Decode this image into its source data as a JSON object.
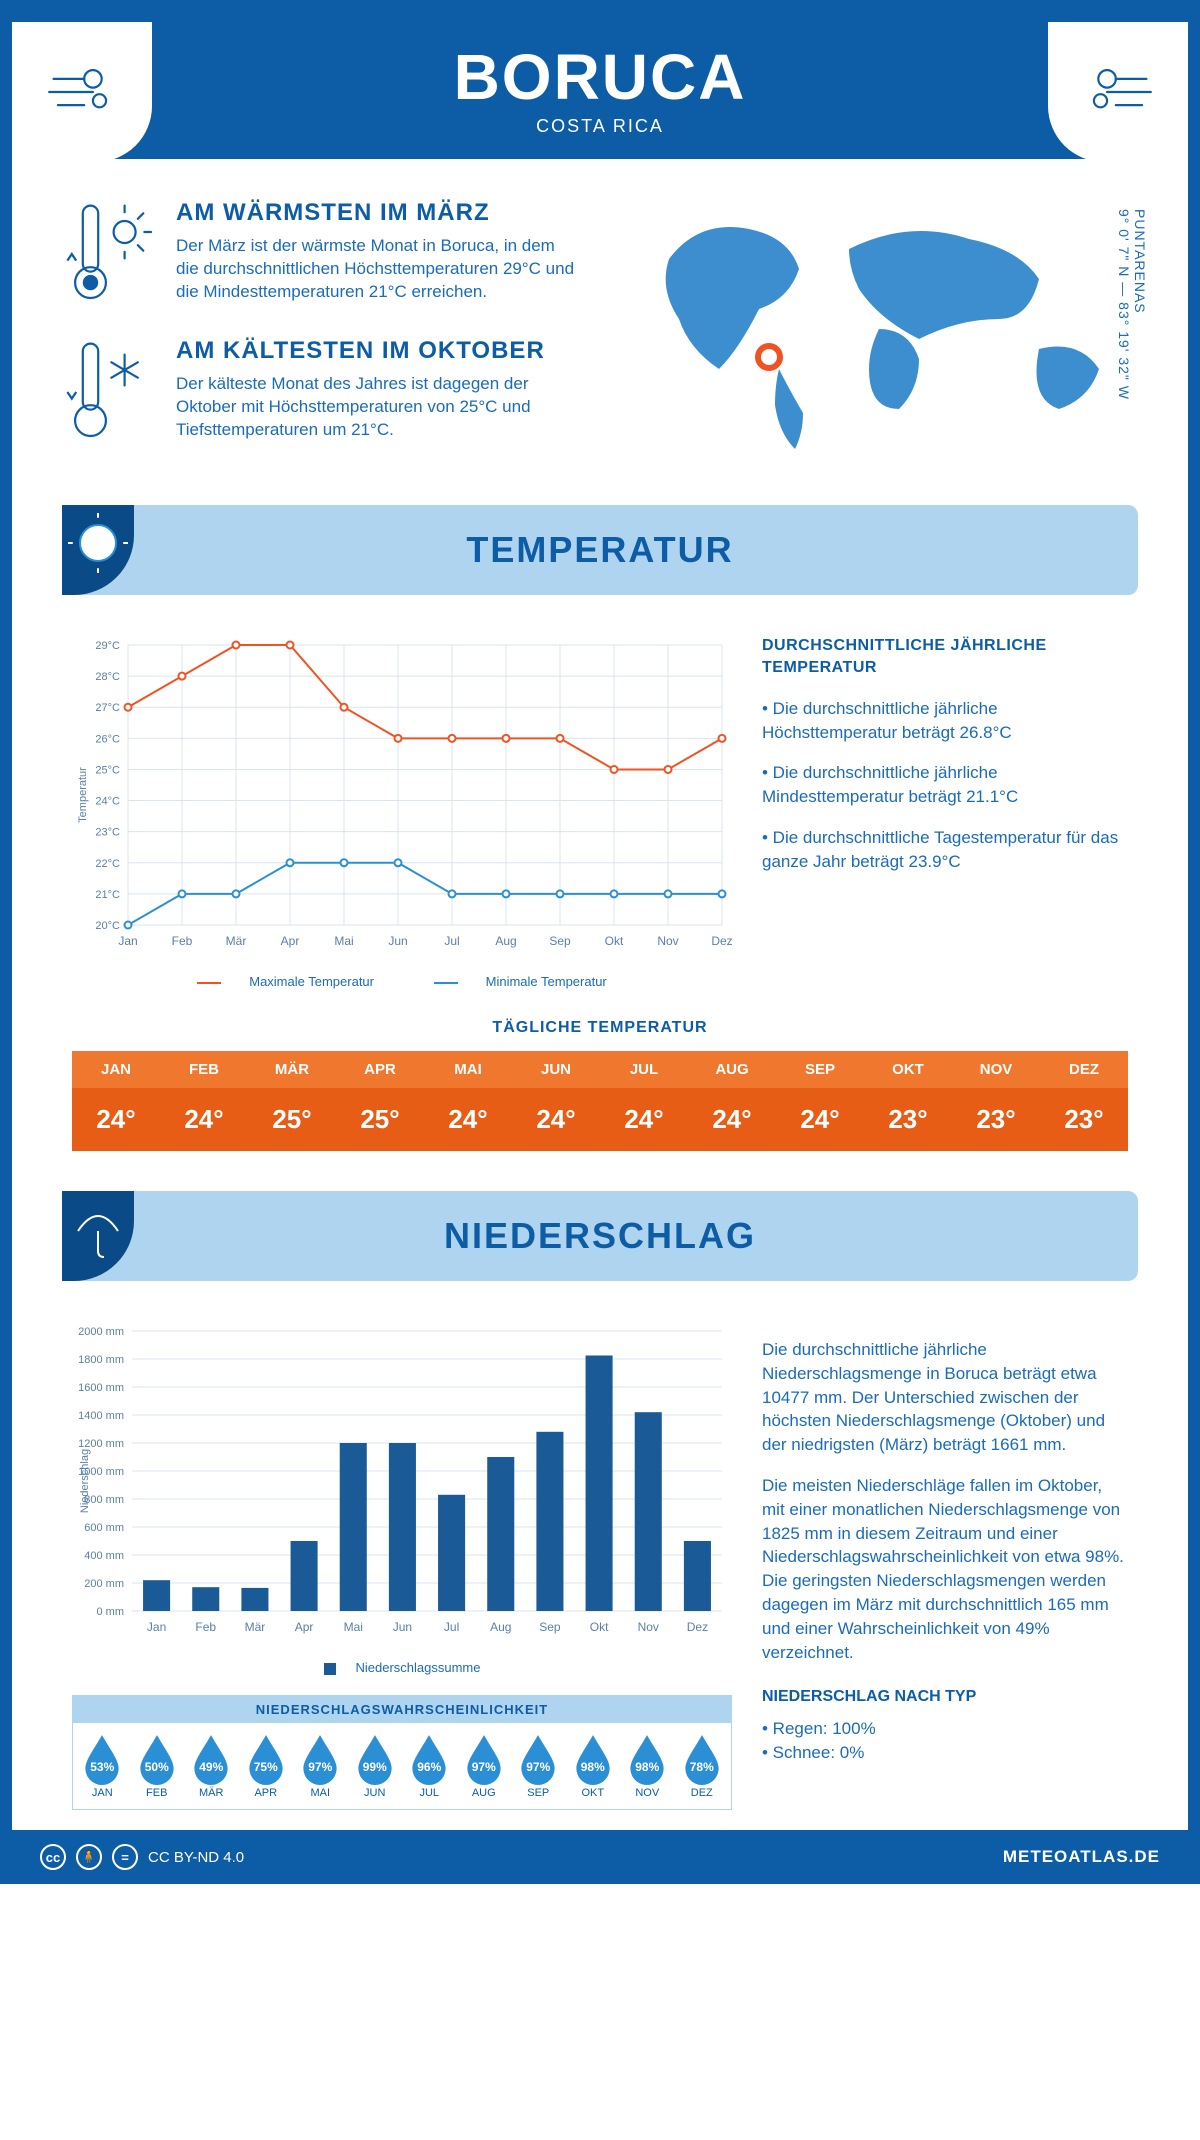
{
  "header": {
    "title": "BORUCA",
    "subtitle": "COSTA RICA"
  },
  "intro": {
    "warm": {
      "heading": "AM WÄRMSTEN IM MÄRZ",
      "text": "Der März ist der wärmste Monat in Boruca, in dem die durchschnittlichen Höchsttemperaturen 29°C und die Mindesttemperaturen 21°C erreichen."
    },
    "cold": {
      "heading": "AM KÄLTESTEN IM OKTOBER",
      "text": "Der kälteste Monat des Jahres ist dagegen der Oktober mit Höchsttemperaturen von 25°C und Tiefsttemperaturen um 21°C."
    },
    "coords": "9° 0' 7\" N — 83° 19' 32\" W",
    "region": "PUNTARENAS"
  },
  "sections": {
    "temperature": "TEMPERATUR",
    "precipitation": "NIEDERSCHLAG"
  },
  "months_short": [
    "Jan",
    "Feb",
    "Mär",
    "Apr",
    "Mai",
    "Jun",
    "Jul",
    "Aug",
    "Sep",
    "Okt",
    "Nov",
    "Dez"
  ],
  "months_upper": [
    "JAN",
    "FEB",
    "MÄR",
    "APR",
    "MAI",
    "JUN",
    "JUL",
    "AUG",
    "SEP",
    "OKT",
    "NOV",
    "DEZ"
  ],
  "temp_chart": {
    "type": "line",
    "ylabel": "Temperatur",
    "ylim": [
      20,
      29
    ],
    "ytick_step": 1,
    "grid_color": "#d8e4f0",
    "max_color": "#f05323",
    "min_color": "#2b8fd6",
    "max_series": [
      27,
      28,
      29,
      29,
      27,
      26,
      26,
      26,
      26,
      25,
      25,
      26
    ],
    "min_series": [
      20,
      21,
      21,
      22,
      22,
      22,
      21,
      21,
      21,
      21,
      21,
      21
    ],
    "max_label": "Maximale Temperatur",
    "min_label": "Minimale Temperatur"
  },
  "temp_text": {
    "heading": "DURCHSCHNITTLICHE JÄHRLICHE TEMPERATUR",
    "b1": "• Die durchschnittliche jährliche Höchsttemperatur beträgt 26.8°C",
    "b2": "• Die durchschnittliche jährliche Mindesttemperatur beträgt 21.1°C",
    "b3": "• Die durchschnittliche Tagestemperatur für das ganze Jahr beträgt 23.9°C"
  },
  "daily": {
    "title": "TÄGLICHE TEMPERATUR",
    "values": [
      "24°",
      "24°",
      "25°",
      "25°",
      "24°",
      "24°",
      "24°",
      "24°",
      "24°",
      "23°",
      "23°",
      "23°"
    ]
  },
  "precip_chart": {
    "type": "bar",
    "ylabel": "Niederschlag",
    "ymax": 2000,
    "ytick_step": 200,
    "bar_color": "#1a5a96",
    "grid_color": "#d8e4f0",
    "values": [
      220,
      170,
      165,
      500,
      1200,
      1200,
      830,
      1100,
      1280,
      1825,
      1420,
      500
    ],
    "legend": "Niederschlagssumme"
  },
  "probability": {
    "title": "NIEDERSCHLAGSWAHRSCHEINLICHKEIT",
    "values": [
      "53%",
      "50%",
      "49%",
      "75%",
      "97%",
      "99%",
      "96%",
      "97%",
      "97%",
      "98%",
      "98%",
      "78%"
    ],
    "drop_color": "#2b8fd6"
  },
  "precip_text": {
    "p1": "Die durchschnittliche jährliche Niederschlagsmenge in Boruca beträgt etwa 10477 mm. Der Unterschied zwischen der höchsten Niederschlagsmenge (Oktober) und der niedrigsten (März) beträgt 1661 mm.",
    "p2": "Die meisten Niederschläge fallen im Oktober, mit einer monatlichen Niederschlagsmenge von 1825 mm in diesem Zeitraum und einer Niederschlagswahrscheinlichkeit von etwa 98%. Die geringsten Niederschlagsmengen werden dagegen im März mit durchschnittlich 165 mm und einer Wahrscheinlichkeit von 49% verzeichnet.",
    "type_heading": "NIEDERSCHLAG NACH TYP",
    "rain": "• Regen: 100%",
    "snow": "• Schnee: 0%"
  },
  "footer": {
    "license": "CC BY-ND 4.0",
    "site": "METEOATLAS.DE"
  }
}
